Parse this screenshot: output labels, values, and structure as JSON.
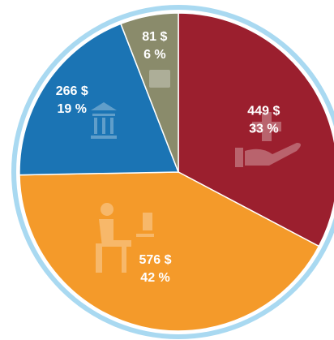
{
  "chart_data": {
    "type": "pie",
    "categories": [
      null,
      null,
      null,
      null
    ],
    "values": [
      449,
      576,
      266,
      81
    ],
    "value_labels": [
      "449 $",
      "576 $",
      "266 $",
      "81 $"
    ],
    "percent_labels": [
      "33 %",
      "42 %",
      "19 %",
      "6 %"
    ],
    "colors": [
      "#9b1f2e",
      "#f49a2a",
      "#1b74b4",
      "#8a8b6b"
    ]
  }
}
